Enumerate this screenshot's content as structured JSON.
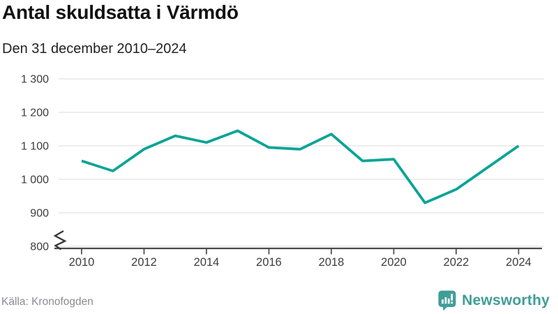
{
  "header": {
    "title": "Antal skuldsatta i Värmdö",
    "subtitle": "Den 31 december 2010–2024"
  },
  "chart_data": {
    "type": "line",
    "title": "Antal skuldsatta i Värmdö",
    "subtitle": "Den 31 december 2010–2024",
    "x": [
      2010,
      2011,
      2012,
      2013,
      2014,
      2015,
      2016,
      2017,
      2018,
      2019,
      2020,
      2021,
      2022,
      2023,
      2024
    ],
    "series": [
      {
        "name": "Antal skuldsatta",
        "values": [
          1055,
          1025,
          1090,
          1130,
          1110,
          1145,
          1095,
          1090,
          1135,
          1055,
          1060,
          930,
          970,
          1035,
          1100
        ]
      }
    ],
    "ylim": [
      800,
      1300
    ],
    "yticks": [
      800,
      900,
      1000,
      1100,
      1200,
      1300
    ],
    "ytick_labels": [
      "800",
      "900",
      "1 000",
      "1 100",
      "1 200",
      "1 300"
    ],
    "xticks": [
      2010,
      2012,
      2014,
      2016,
      2018,
      2020,
      2022,
      2024
    ],
    "xtick_labels": [
      "2010",
      "2012",
      "2014",
      "2016",
      "2018",
      "2020",
      "2022",
      "2024"
    ],
    "grid": "horizontal",
    "legend": "none",
    "axis_break_at_ymin": true,
    "line_color": "#0aa496"
  },
  "colors": {
    "line": "#0aa496",
    "grid": "#e2e2e2",
    "axis": "#4a4a4a",
    "tick_label": "#3d3d3d",
    "title": "#111111",
    "subtitle": "#222222",
    "source_text": "#8b8b93",
    "brand": "#3f9e97"
  },
  "footer": {
    "source": "Källa: Kronofogden",
    "brand_name": "Newsworthy"
  }
}
